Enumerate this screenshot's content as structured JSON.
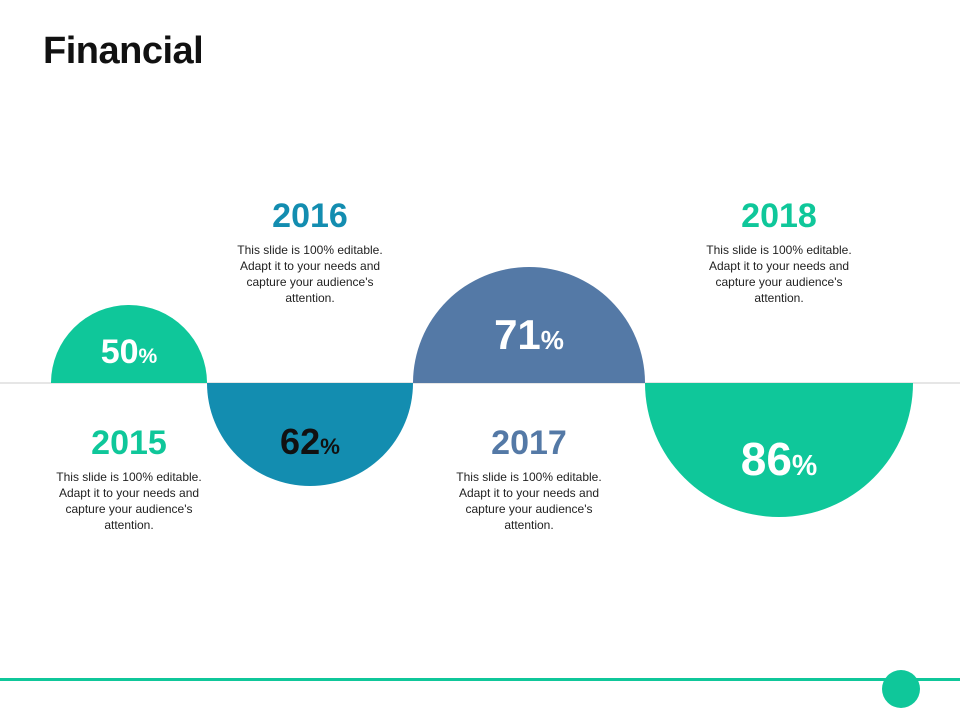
{
  "title": "Financial",
  "colors": {
    "green": "#0fc79a",
    "teal": "#138db0",
    "slate": "#5479a6",
    "line": "#cccccc"
  },
  "items": [
    {
      "year": "2015",
      "value": "50",
      "unit": "%",
      "desc": "This slide is 100% editable. Adapt it to your needs and capture your audience's attention."
    },
    {
      "year": "2016",
      "value": "62",
      "unit": "%",
      "desc": "This slide is 100% editable. Adapt it to your needs and capture your audience's attention."
    },
    {
      "year": "2017",
      "value": "71",
      "unit": "%",
      "desc": "This slide is 100% editable. Adapt it to your needs and capture your audience's attention."
    },
    {
      "year": "2018",
      "value": "86",
      "unit": "%",
      "desc": "This slide is 100% editable. Adapt it to your needs and capture your audience's attention."
    }
  ]
}
